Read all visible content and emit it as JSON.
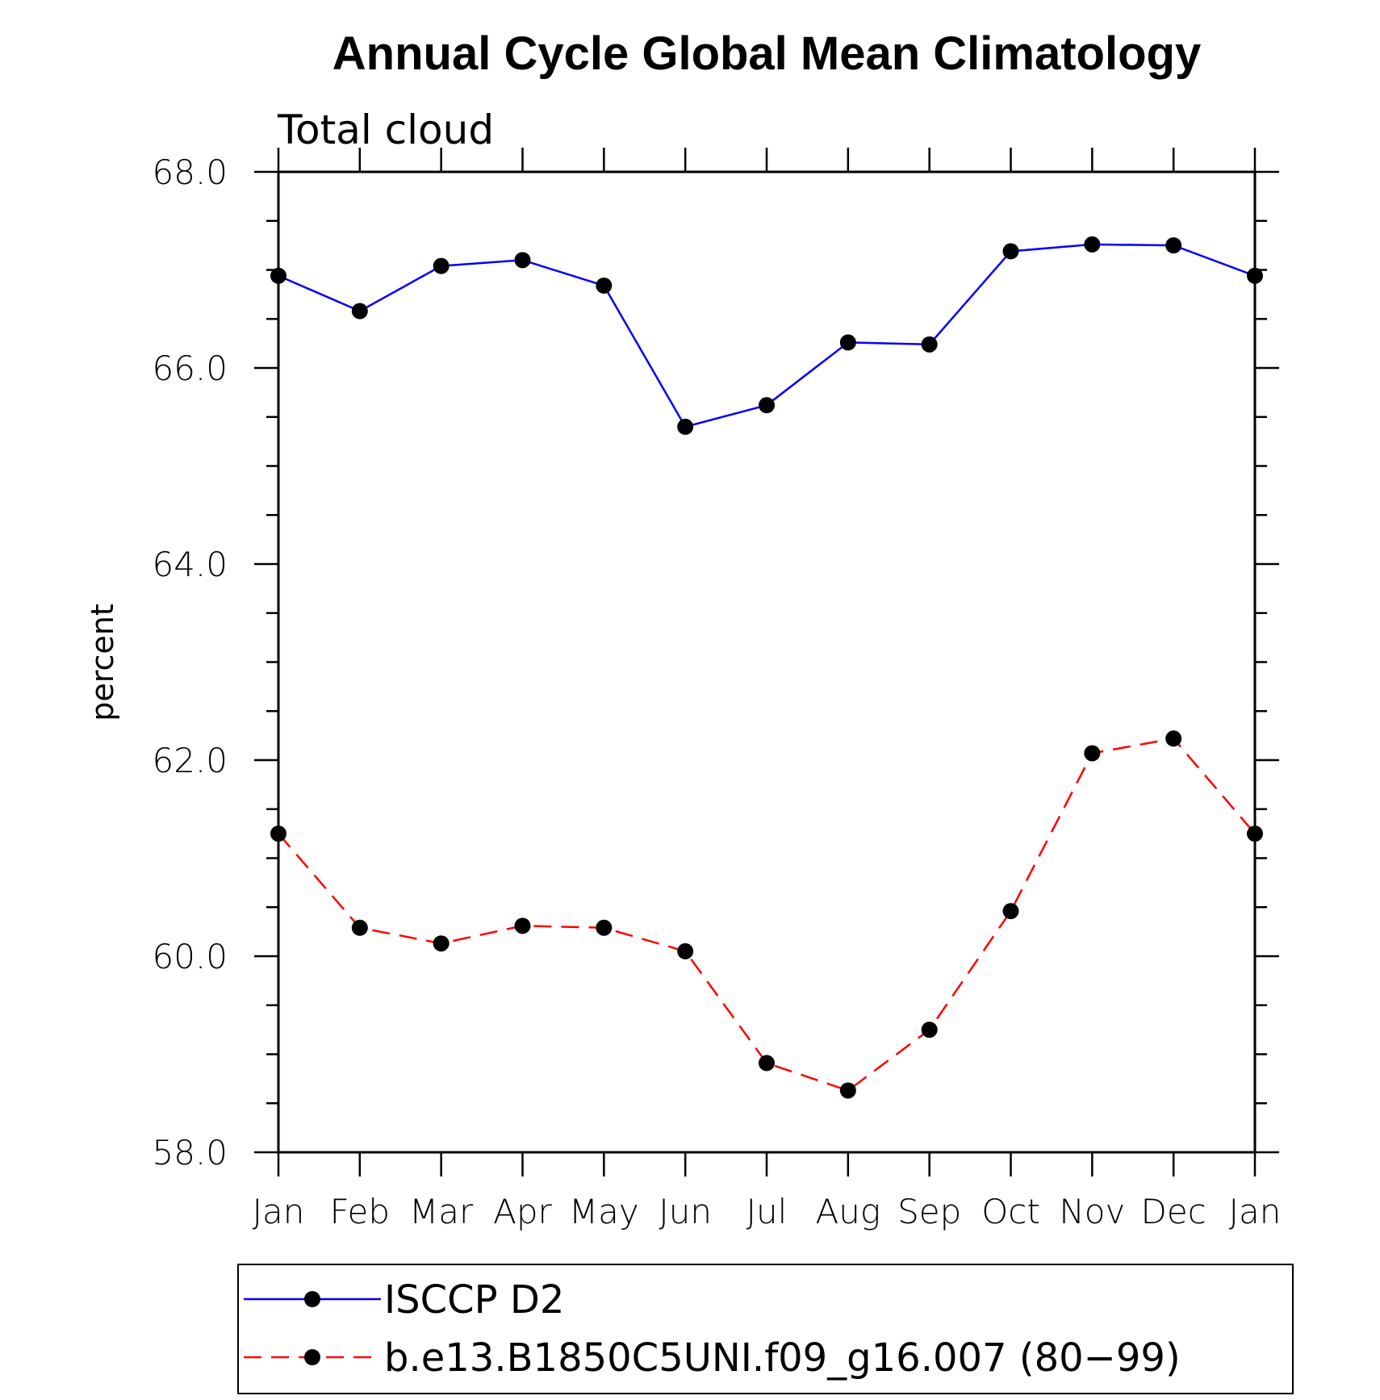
{
  "chart_data": {
    "type": "line",
    "title": "Annual Cycle Global Mean Climatology",
    "subtitle": "Total cloud",
    "ylabel": "percent",
    "xlabel": "",
    "categories": [
      "Jan",
      "Feb",
      "Mar",
      "Apr",
      "May",
      "Jun",
      "Jul",
      "Aug",
      "Sep",
      "Oct",
      "Nov",
      "Dec",
      "Jan"
    ],
    "ylim": [
      58.0,
      68.0
    ],
    "yticks": [
      "58.0",
      "60.0",
      "62.0",
      "64.0",
      "66.0",
      "68.0"
    ],
    "series": [
      {
        "name": "ISCCP D2",
        "color": "#0000ff",
        "dash": "solid",
        "marker": "filled-circle",
        "values": [
          66.94,
          66.58,
          67.04,
          67.1,
          66.84,
          65.4,
          65.62,
          66.26,
          66.24,
          67.19,
          67.26,
          67.25,
          66.94
        ]
      },
      {
        "name": "b.e13.B1850C5UNI.f09_g16.007 (80−99)",
        "color": "#ff0000",
        "dash": "dashed",
        "marker": "filled-circle",
        "values": [
          61.25,
          60.29,
          60.13,
          60.31,
          60.29,
          60.05,
          58.91,
          58.63,
          59.25,
          60.46,
          62.07,
          62.22,
          61.25
        ]
      }
    ],
    "legend": "bottom"
  }
}
